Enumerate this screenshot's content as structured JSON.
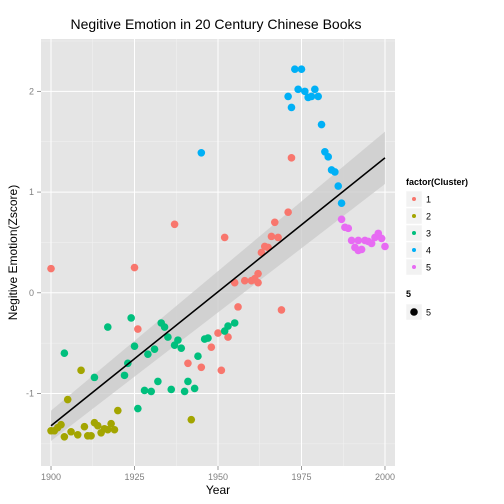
{
  "chart_data": {
    "type": "scatter",
    "title": "Negitive Emotion in 20 Century Chinese Books",
    "xlabel": "Year",
    "ylabel": "Negitive Emotion(Zscore)",
    "xlim": [
      1897,
      2003
    ],
    "ylim": [
      -1.72,
      2.52
    ],
    "x_ticks": [
      1900,
      1925,
      1950,
      1975,
      2000
    ],
    "y_ticks": [
      -1,
      0,
      1,
      2
    ],
    "grid": true,
    "background": "#e5e5e5",
    "legend_placement": "right",
    "legend": {
      "color_title": "factor(Cluster)",
      "size_title": "5",
      "size_label": "5"
    },
    "series": [
      {
        "name": "1",
        "color": "#f8766d",
        "points": [
          [
            1900,
            0.24
          ],
          [
            1925,
            0.25
          ],
          [
            1926,
            -0.36
          ],
          [
            1937,
            0.68
          ],
          [
            1941,
            -0.7
          ],
          [
            1945,
            -0.74
          ],
          [
            1948,
            -0.54
          ],
          [
            1950,
            -0.4
          ],
          [
            1951,
            -0.77
          ],
          [
            1952,
            0.55
          ],
          [
            1953,
            -0.44
          ],
          [
            1955,
            0.1
          ],
          [
            1956,
            -0.14
          ],
          [
            1958,
            0.12
          ],
          [
            1960,
            0.12
          ],
          [
            1961,
            0.14
          ],
          [
            1962,
            0.1
          ],
          [
            1962,
            0.19
          ],
          [
            1963,
            0.4
          ],
          [
            1964,
            0.46
          ],
          [
            1965,
            0.45
          ],
          [
            1966,
            0.56
          ],
          [
            1967,
            0.7
          ],
          [
            1968,
            0.55
          ],
          [
            1969,
            -0.17
          ],
          [
            1971,
            0.8
          ],
          [
            1972,
            1.34
          ]
        ]
      },
      {
        "name": "2",
        "color": "#a3a500",
        "points": [
          [
            1900,
            -1.37
          ],
          [
            1901,
            -1.37
          ],
          [
            1902,
            -1.34
          ],
          [
            1903,
            -1.31
          ],
          [
            1904,
            -1.43
          ],
          [
            1905,
            -1.06
          ],
          [
            1906,
            -1.38
          ],
          [
            1908,
            -1.41
          ],
          [
            1909,
            -0.77
          ],
          [
            1910,
            -1.33
          ],
          [
            1911,
            -1.42
          ],
          [
            1912,
            -1.42
          ],
          [
            1913,
            -1.29
          ],
          [
            1914,
            -1.32
          ],
          [
            1915,
            -1.39
          ],
          [
            1916,
            -1.35
          ],
          [
            1917,
            -1.36
          ],
          [
            1918,
            -1.3
          ],
          [
            1919,
            -1.36
          ],
          [
            1920,
            -1.17
          ],
          [
            1942,
            -1.26
          ]
        ]
      },
      {
        "name": "3",
        "color": "#00bf7d",
        "points": [
          [
            1904,
            -0.6
          ],
          [
            1913,
            -0.84
          ],
          [
            1917,
            -0.34
          ],
          [
            1922,
            -0.82
          ],
          [
            1923,
            -0.7
          ],
          [
            1924,
            -0.25
          ],
          [
            1925,
            -0.53
          ],
          [
            1926,
            -1.15
          ],
          [
            1928,
            -0.97
          ],
          [
            1929,
            -0.61
          ],
          [
            1930,
            -0.98
          ],
          [
            1931,
            -0.56
          ],
          [
            1932,
            -0.88
          ],
          [
            1933,
            -0.3
          ],
          [
            1934,
            -0.34
          ],
          [
            1935,
            -0.44
          ],
          [
            1936,
            -0.96
          ],
          [
            1937,
            -0.52
          ],
          [
            1938,
            -0.47
          ],
          [
            1939,
            -0.55
          ],
          [
            1940,
            -0.98
          ],
          [
            1941,
            -0.88
          ],
          [
            1943,
            -0.95
          ],
          [
            1944,
            -0.63
          ],
          [
            1946,
            -0.46
          ],
          [
            1947,
            -0.45
          ],
          [
            1952,
            -0.38
          ],
          [
            1953,
            -0.33
          ],
          [
            1955,
            -0.3
          ]
        ]
      },
      {
        "name": "4",
        "color": "#00b0f6",
        "points": [
          [
            1945,
            1.39
          ],
          [
            1971,
            1.95
          ],
          [
            1972,
            1.84
          ],
          [
            1973,
            2.22
          ],
          [
            1974,
            2.02
          ],
          [
            1975,
            2.22
          ],
          [
            1976,
            2.0
          ],
          [
            1977,
            1.94
          ],
          [
            1978,
            1.95
          ],
          [
            1979,
            2.02
          ],
          [
            1980,
            1.95
          ],
          [
            1981,
            1.67
          ],
          [
            1982,
            1.4
          ],
          [
            1983,
            1.35
          ],
          [
            1984,
            1.22
          ],
          [
            1985,
            1.2
          ],
          [
            1986,
            1.06
          ],
          [
            1987,
            0.89
          ]
        ]
      },
      {
        "name": "5",
        "color": "#e76bf3",
        "points": [
          [
            1987,
            0.73
          ],
          [
            1988,
            0.65
          ],
          [
            1989,
            0.64
          ],
          [
            1990,
            0.52
          ],
          [
            1991,
            0.45
          ],
          [
            1992,
            0.42
          ],
          [
            1992,
            0.52
          ],
          [
            1993,
            0.43
          ],
          [
            1994,
            0.52
          ],
          [
            1995,
            0.51
          ],
          [
            1996,
            0.49
          ],
          [
            1997,
            0.55
          ],
          [
            1998,
            0.59
          ],
          [
            1999,
            0.54
          ],
          [
            2000,
            0.46
          ]
        ]
      }
    ],
    "trend": {
      "x": [
        1900,
        2000
      ],
      "y": [
        -1.32,
        1.34
      ],
      "band_lower": [
        -1.47,
        1.08
      ],
      "band_upper": [
        -1.17,
        1.6
      ]
    }
  }
}
